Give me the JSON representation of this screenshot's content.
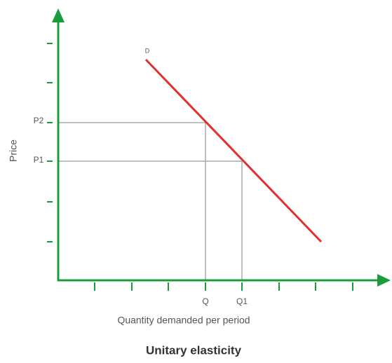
{
  "title": "Unitary elasticity",
  "y_label": "Price",
  "x_label": "Quantity demanded per period",
  "curve_label": "D",
  "price_labels": [
    "P2",
    "P1"
  ],
  "quantity_labels": [
    "Q",
    "Q1"
  ]
}
